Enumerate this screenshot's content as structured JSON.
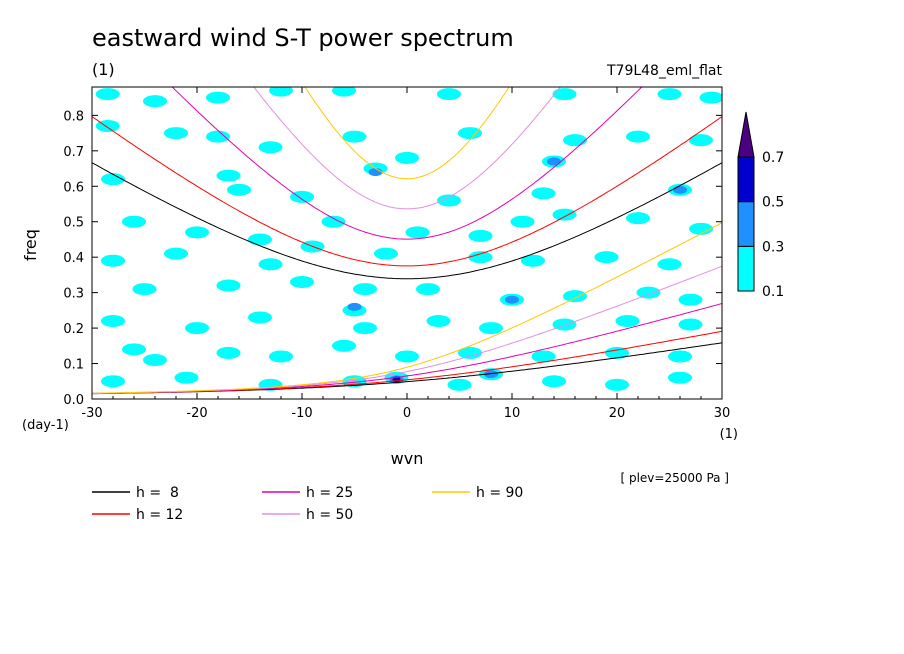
{
  "chart_data": {
    "type": "heatmap",
    "title": "eastward wind S-T power spectrum",
    "title_unit": "(1)",
    "experiment": "T79L48_eml_flat",
    "xlabel": "wvn",
    "x_unit": "(1)",
    "ylabel": "freq",
    "y_unit": "(day-1)",
    "xlim": [
      -30,
      30
    ],
    "ylim": [
      0,
      0.88
    ],
    "x_ticks": [
      -30,
      -20,
      -10,
      0,
      10,
      20,
      30
    ],
    "x_tick_labels": [
      "-30",
      "-20",
      "-10",
      "0",
      "10",
      "20",
      "30"
    ],
    "y_ticks": [
      0,
      0.1,
      0.2,
      0.3,
      0.4,
      0.5,
      0.6,
      0.7,
      0.8
    ],
    "y_tick_labels": [
      "0.0",
      "0.1",
      "0.2",
      "0.3",
      "0.4",
      "0.5",
      "0.6",
      "0.7",
      "0.8"
    ],
    "level_note": "[ plev=25000 Pa ]",
    "colorbar": {
      "levels": [
        "0.1",
        "0.3",
        "0.5",
        "0.7"
      ],
      "colors": [
        "#00ffff",
        "#1e90ff",
        "#0000cd",
        "#4b0082"
      ]
    },
    "dispersion_curves": [
      {
        "label": "h =  8",
        "h": 8,
        "color": "#000000"
      },
      {
        "label": "h = 12",
        "h": 12,
        "color": "#ff0000"
      },
      {
        "label": "h = 25",
        "h": 25,
        "color": "#e000b0"
      },
      {
        "label": "h = 50",
        "h": 50,
        "color": "#e090e0"
      },
      {
        "label": "h = 90",
        "h": 90,
        "color": "#ffc800"
      }
    ],
    "power_patches": [
      {
        "x": -28.5,
        "y": 0.86,
        "level": 0
      },
      {
        "x": -24,
        "y": 0.84,
        "level": 0
      },
      {
        "x": -18,
        "y": 0.85,
        "level": 0
      },
      {
        "x": -12,
        "y": 0.87,
        "level": 0
      },
      {
        "x": -6,
        "y": 0.87,
        "level": 0
      },
      {
        "x": 4,
        "y": 0.86,
        "level": 0
      },
      {
        "x": 15,
        "y": 0.86,
        "level": 0
      },
      {
        "x": 25,
        "y": 0.86,
        "level": 0
      },
      {
        "x": 29,
        "y": 0.85,
        "level": 0
      },
      {
        "x": -28.5,
        "y": 0.77,
        "level": 0
      },
      {
        "x": -22,
        "y": 0.75,
        "level": 0
      },
      {
        "x": -18,
        "y": 0.74,
        "level": 0
      },
      {
        "x": -13,
        "y": 0.71,
        "level": 0
      },
      {
        "x": -5,
        "y": 0.74,
        "level": 0
      },
      {
        "x": -3,
        "y": 0.65,
        "level": 0
      },
      {
        "x": -3,
        "y": 0.64,
        "level": 1
      },
      {
        "x": 0,
        "y": 0.68,
        "level": 0
      },
      {
        "x": 6,
        "y": 0.75,
        "level": 0
      },
      {
        "x": 14,
        "y": 0.67,
        "level": 0
      },
      {
        "x": 14,
        "y": 0.67,
        "level": 1
      },
      {
        "x": 16,
        "y": 0.73,
        "level": 0
      },
      {
        "x": 22,
        "y": 0.74,
        "level": 0
      },
      {
        "x": 28,
        "y": 0.73,
        "level": 0
      },
      {
        "x": -28,
        "y": 0.62,
        "level": 0
      },
      {
        "x": -16,
        "y": 0.59,
        "level": 0
      },
      {
        "x": -10,
        "y": 0.57,
        "level": 0
      },
      {
        "x": -17,
        "y": 0.63,
        "level": 0
      },
      {
        "x": 4,
        "y": 0.56,
        "level": 0
      },
      {
        "x": 13,
        "y": 0.58,
        "level": 0
      },
      {
        "x": 26,
        "y": 0.59,
        "level": 0
      },
      {
        "x": 26,
        "y": 0.59,
        "level": 1
      },
      {
        "x": -26,
        "y": 0.5,
        "level": 0
      },
      {
        "x": -20,
        "y": 0.47,
        "level": 0
      },
      {
        "x": -14,
        "y": 0.45,
        "level": 0
      },
      {
        "x": -7,
        "y": 0.5,
        "level": 0
      },
      {
        "x": 1,
        "y": 0.47,
        "level": 0
      },
      {
        "x": 7,
        "y": 0.46,
        "level": 0
      },
      {
        "x": 11,
        "y": 0.5,
        "level": 0
      },
      {
        "x": 15,
        "y": 0.52,
        "level": 0
      },
      {
        "x": 22,
        "y": 0.51,
        "level": 0
      },
      {
        "x": 28,
        "y": 0.48,
        "level": 0
      },
      {
        "x": -28,
        "y": 0.39,
        "level": 0
      },
      {
        "x": -22,
        "y": 0.41,
        "level": 0
      },
      {
        "x": -13,
        "y": 0.38,
        "level": 0
      },
      {
        "x": -9,
        "y": 0.43,
        "level": 0
      },
      {
        "x": -2,
        "y": 0.41,
        "level": 0
      },
      {
        "x": 7,
        "y": 0.4,
        "level": 0
      },
      {
        "x": 12,
        "y": 0.39,
        "level": 0
      },
      {
        "x": 19,
        "y": 0.4,
        "level": 0
      },
      {
        "x": 25,
        "y": 0.38,
        "level": 0
      },
      {
        "x": -25,
        "y": 0.31,
        "level": 0
      },
      {
        "x": -17,
        "y": 0.32,
        "level": 0
      },
      {
        "x": -10,
        "y": 0.33,
        "level": 0
      },
      {
        "x": -4,
        "y": 0.31,
        "level": 0
      },
      {
        "x": 2,
        "y": 0.31,
        "level": 0
      },
      {
        "x": 10,
        "y": 0.28,
        "level": 0
      },
      {
        "x": 10,
        "y": 0.28,
        "level": 1
      },
      {
        "x": 16,
        "y": 0.29,
        "level": 0
      },
      {
        "x": 23,
        "y": 0.3,
        "level": 0
      },
      {
        "x": 27,
        "y": 0.28,
        "level": 0
      },
      {
        "x": -28,
        "y": 0.22,
        "level": 0
      },
      {
        "x": -20,
        "y": 0.2,
        "level": 0
      },
      {
        "x": -14,
        "y": 0.23,
        "level": 0
      },
      {
        "x": -5,
        "y": 0.25,
        "level": 0
      },
      {
        "x": -5,
        "y": 0.26,
        "level": 1
      },
      {
        "x": -4,
        "y": 0.2,
        "level": 0
      },
      {
        "x": 3,
        "y": 0.22,
        "level": 0
      },
      {
        "x": 8,
        "y": 0.2,
        "level": 0
      },
      {
        "x": 15,
        "y": 0.21,
        "level": 0
      },
      {
        "x": 21,
        "y": 0.22,
        "level": 0
      },
      {
        "x": 27,
        "y": 0.21,
        "level": 0
      },
      {
        "x": -26,
        "y": 0.14,
        "level": 0
      },
      {
        "x": -24,
        "y": 0.11,
        "level": 0
      },
      {
        "x": -17,
        "y": 0.13,
        "level": 0
      },
      {
        "x": -12,
        "y": 0.12,
        "level": 0
      },
      {
        "x": -6,
        "y": 0.15,
        "level": 0
      },
      {
        "x": 0,
        "y": 0.12,
        "level": 0
      },
      {
        "x": 6,
        "y": 0.13,
        "level": 0
      },
      {
        "x": 13,
        "y": 0.12,
        "level": 0
      },
      {
        "x": 20,
        "y": 0.13,
        "level": 0
      },
      {
        "x": 26,
        "y": 0.12,
        "level": 0
      },
      {
        "x": -28,
        "y": 0.05,
        "level": 0
      },
      {
        "x": -21,
        "y": 0.06,
        "level": 0
      },
      {
        "x": -13,
        "y": 0.04,
        "level": 0
      },
      {
        "x": -5,
        "y": 0.05,
        "level": 0
      },
      {
        "x": -1,
        "y": 0.06,
        "level": 0
      },
      {
        "x": -1,
        "y": 0.055,
        "level": 1
      },
      {
        "x": -1,
        "y": 0.055,
        "level": 2
      },
      {
        "x": 5,
        "y": 0.04,
        "level": 0
      },
      {
        "x": 8,
        "y": 0.07,
        "level": 0
      },
      {
        "x": 8,
        "y": 0.07,
        "level": 1
      },
      {
        "x": 14,
        "y": 0.05,
        "level": 0
      },
      {
        "x": 20,
        "y": 0.04,
        "level": 0
      },
      {
        "x": 26,
        "y": 0.06,
        "level": 0
      }
    ]
  }
}
